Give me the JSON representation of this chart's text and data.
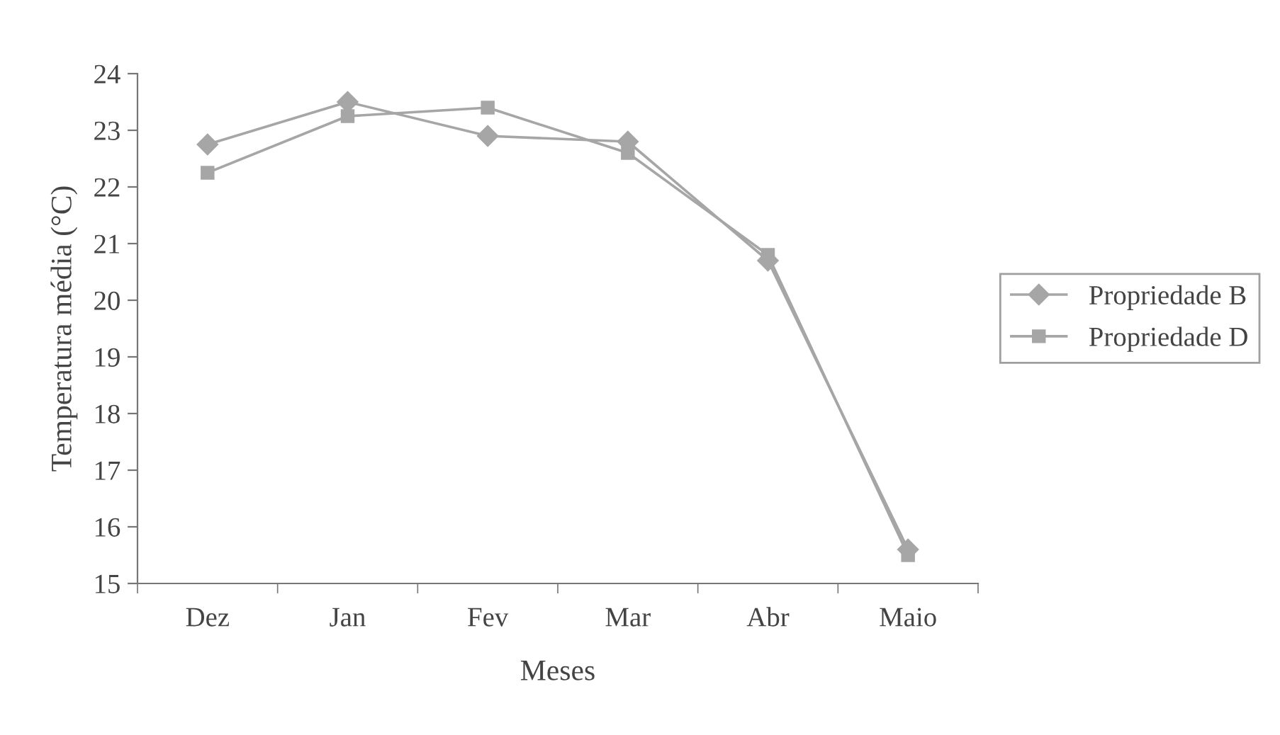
{
  "chart_data": {
    "type": "line",
    "xlabel": "Meses",
    "ylabel": "Temperatura média (°C)",
    "categories": [
      "Dez",
      "Jan",
      "Fev",
      "Mar",
      "Abr",
      "Maio"
    ],
    "series": [
      {
        "name": "Propriedade B",
        "color": "#a6a6a6",
        "marker": "diamond",
        "values": [
          22.75,
          23.5,
          22.9,
          22.8,
          20.7,
          15.6
        ]
      },
      {
        "name": "Propriedade D",
        "color": "#a6a6a6",
        "marker": "square",
        "values": [
          22.25,
          23.25,
          23.4,
          22.6,
          20.8,
          15.5
        ]
      }
    ],
    "ylim": [
      15,
      24
    ],
    "yticks": [
      15,
      16,
      17,
      18,
      19,
      20,
      21,
      22,
      23,
      24
    ],
    "grid": false,
    "legend": "right",
    "line_style": "solid"
  }
}
